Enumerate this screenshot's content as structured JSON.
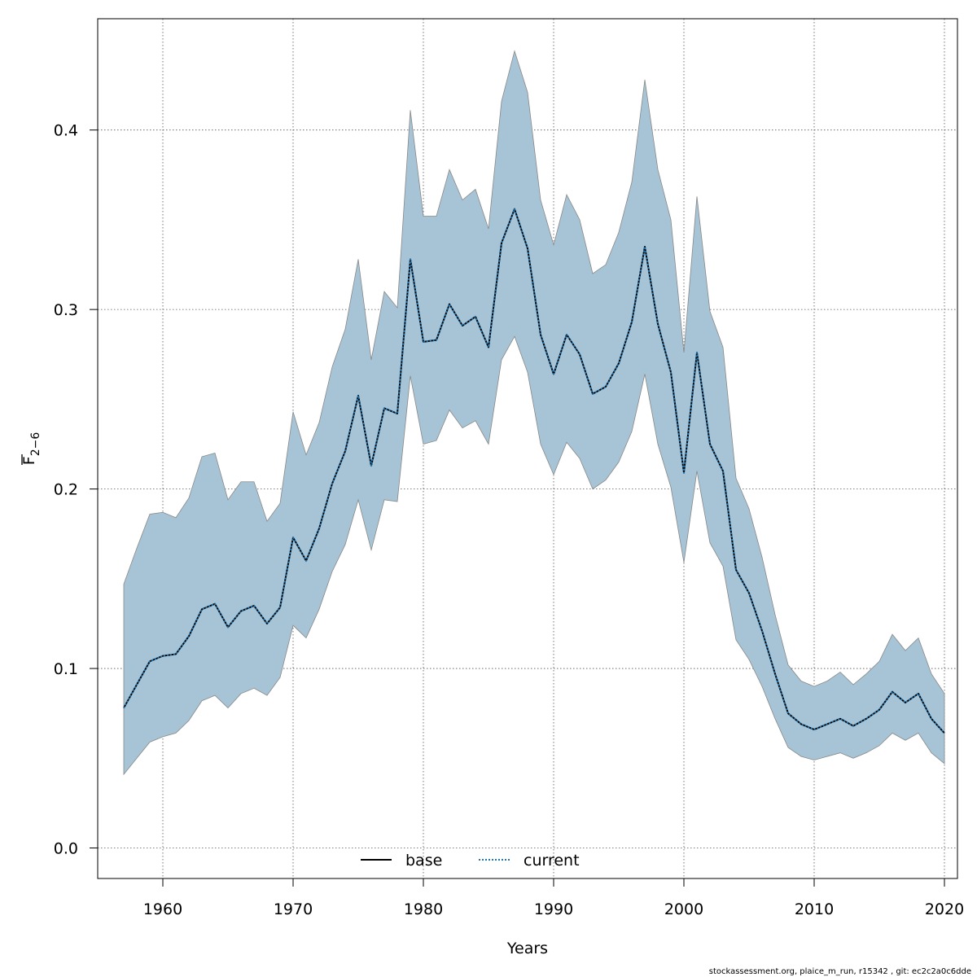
{
  "chart_data": {
    "type": "area",
    "xlabel": "Years",
    "ylabel": {
      "main": "F",
      "subscript": "2−6"
    },
    "xlim": [
      1955,
      2021
    ],
    "ylim": [
      -0.017,
      0.462
    ],
    "x_ticks": [
      "1960",
      "1970",
      "1980",
      "1990",
      "2000",
      "2010",
      "2020"
    ],
    "y_ticks": [
      "0.0",
      "0.1",
      "0.2",
      "0.3",
      "0.4"
    ],
    "grid": true,
    "legend_position": "bottom-center",
    "legend": [
      {
        "label": "base",
        "line": "solid",
        "color": "#000000"
      },
      {
        "label": "current",
        "line": "dotted",
        "color": "#1f77b4"
      }
    ],
    "band_color": "#a6c4d6",
    "band_edge_color": "#888888",
    "footer": "stockassessment.org, plaice_m_run, r15342 , git: ec2c2a0c6dde",
    "x": [
      1957,
      1958,
      1959,
      1960,
      1961,
      1962,
      1963,
      1964,
      1965,
      1966,
      1967,
      1968,
      1969,
      1970,
      1971,
      1972,
      1973,
      1974,
      1975,
      1976,
      1977,
      1978,
      1979,
      1980,
      1981,
      1982,
      1983,
      1984,
      1985,
      1986,
      1987,
      1988,
      1989,
      1990,
      1991,
      1992,
      1993,
      1994,
      1995,
      1996,
      1997,
      1998,
      1999,
      2000,
      2001,
      2002,
      2003,
      2004,
      2005,
      2006,
      2007,
      2008,
      2009,
      2010,
      2011,
      2012,
      2013,
      2014,
      2015,
      2016,
      2017,
      2018,
      2019,
      2020
    ],
    "series": [
      {
        "name": "base",
        "values": [
          0.078,
          0.091,
          0.104,
          0.107,
          0.108,
          0.118,
          0.133,
          0.136,
          0.123,
          0.132,
          0.135,
          0.125,
          0.134,
          0.173,
          0.16,
          0.178,
          0.203,
          0.221,
          0.252,
          0.213,
          0.245,
          0.242,
          0.328,
          0.282,
          0.283,
          0.303,
          0.291,
          0.296,
          0.279,
          0.337,
          0.356,
          0.334,
          0.286,
          0.264,
          0.286,
          0.275,
          0.253,
          0.257,
          0.27,
          0.293,
          0.335,
          0.292,
          0.265,
          0.209,
          0.276,
          0.225,
          0.21,
          0.155,
          0.142,
          0.121,
          0.097,
          0.075,
          0.069,
          0.066,
          0.069,
          0.072,
          0.068,
          0.072,
          0.077,
          0.087,
          0.081,
          0.086,
          0.072,
          0.064
        ]
      },
      {
        "name": "current",
        "values": [
          0.078,
          0.091,
          0.104,
          0.107,
          0.108,
          0.118,
          0.133,
          0.136,
          0.123,
          0.132,
          0.135,
          0.125,
          0.134,
          0.173,
          0.16,
          0.178,
          0.203,
          0.221,
          0.252,
          0.213,
          0.245,
          0.242,
          0.328,
          0.282,
          0.283,
          0.303,
          0.291,
          0.296,
          0.279,
          0.337,
          0.356,
          0.334,
          0.286,
          0.264,
          0.286,
          0.275,
          0.253,
          0.257,
          0.27,
          0.293,
          0.335,
          0.292,
          0.265,
          0.209,
          0.276,
          0.225,
          0.21,
          0.155,
          0.142,
          0.121,
          0.097,
          0.075,
          0.069,
          0.066,
          0.069,
          0.072,
          0.068,
          0.072,
          0.077,
          0.087,
          0.081,
          0.086,
          0.072,
          0.064
        ]
      }
    ],
    "band": {
      "upper": [
        0.147,
        0.167,
        0.186,
        0.187,
        0.184,
        0.195,
        0.218,
        0.22,
        0.194,
        0.204,
        0.204,
        0.182,
        0.192,
        0.243,
        0.219,
        0.237,
        0.268,
        0.289,
        0.328,
        0.272,
        0.31,
        0.301,
        0.411,
        0.352,
        0.352,
        0.378,
        0.361,
        0.367,
        0.345,
        0.416,
        0.444,
        0.421,
        0.361,
        0.336,
        0.364,
        0.35,
        0.32,
        0.325,
        0.343,
        0.371,
        0.428,
        0.378,
        0.35,
        0.276,
        0.363,
        0.299,
        0.279,
        0.206,
        0.189,
        0.162,
        0.13,
        0.102,
        0.093,
        0.09,
        0.093,
        0.098,
        0.091,
        0.097,
        0.104,
        0.119,
        0.11,
        0.117,
        0.097,
        0.086
      ],
      "lower": [
        0.041,
        0.05,
        0.059,
        0.062,
        0.064,
        0.071,
        0.082,
        0.085,
        0.078,
        0.086,
        0.089,
        0.085,
        0.095,
        0.124,
        0.117,
        0.133,
        0.154,
        0.169,
        0.194,
        0.166,
        0.194,
        0.193,
        0.263,
        0.225,
        0.227,
        0.244,
        0.234,
        0.238,
        0.225,
        0.272,
        0.285,
        0.265,
        0.225,
        0.208,
        0.226,
        0.217,
        0.2,
        0.205,
        0.215,
        0.232,
        0.264,
        0.225,
        0.201,
        0.159,
        0.21,
        0.17,
        0.157,
        0.116,
        0.105,
        0.09,
        0.072,
        0.056,
        0.051,
        0.049,
        0.051,
        0.053,
        0.05,
        0.053,
        0.057,
        0.064,
        0.06,
        0.064,
        0.053,
        0.047
      ]
    }
  }
}
